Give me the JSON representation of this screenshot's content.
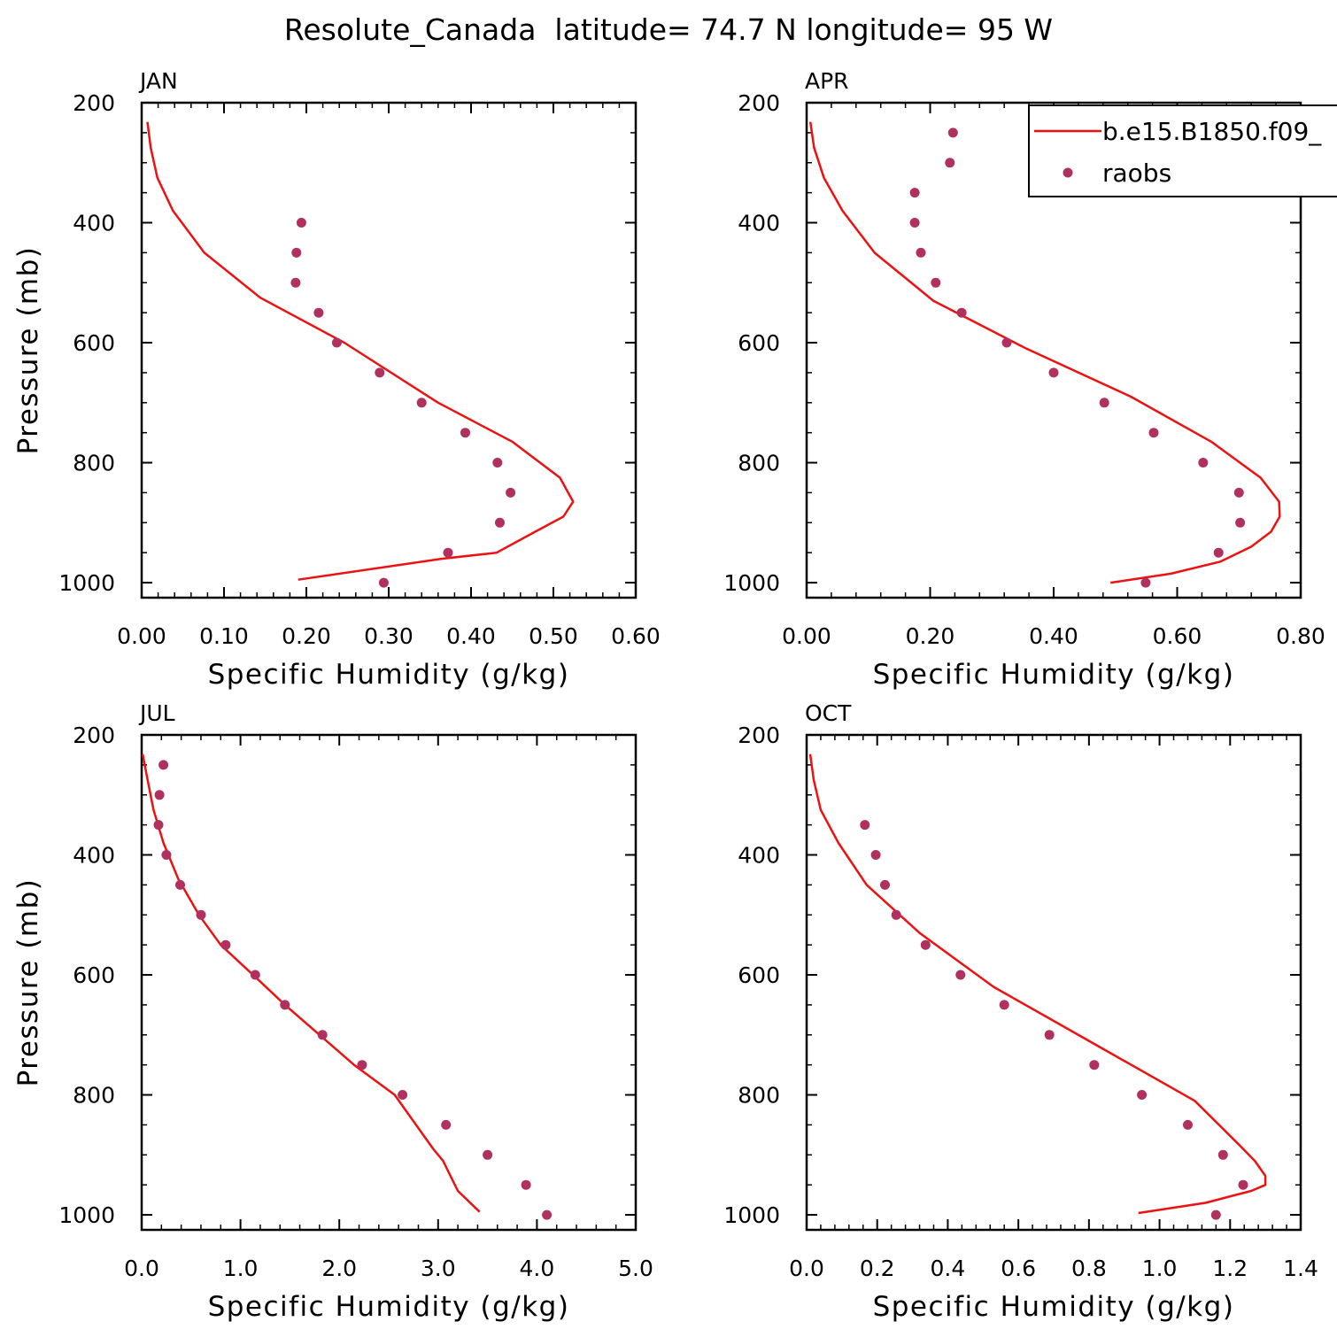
{
  "figure": {
    "title": "Resolute_Canada  latitude= 74.7 N longitude= 95 W"
  },
  "colors": {
    "model_line": "#ee1111",
    "obs_points": "#b03060",
    "axes": "#000000"
  },
  "legend": {
    "placement": "top-right of APR panel",
    "entries": [
      "b.e15.B1850.f09_",
      "raobs"
    ]
  },
  "chart_data": [
    {
      "type": "line",
      "panel_label": "JAN",
      "xlabel": "Specific Humidity (g/kg)",
      "ylabel": "Pressure (mb)",
      "xlim": [
        0,
        0.6
      ],
      "ylim": [
        200,
        1025
      ],
      "y_inverted": true,
      "xticks": [
        0,
        0.1,
        0.2,
        0.3,
        0.4,
        0.5,
        0.6
      ],
      "xtick_labels": [
        "0.00",
        "0.10",
        "0.20",
        "0.30",
        "0.40",
        "0.50",
        "0.60"
      ],
      "yticks": [
        200,
        400,
        600,
        800,
        1000
      ],
      "ytick_labels": [
        "200",
        "400",
        "600",
        "800",
        "1000"
      ],
      "series": [
        {
          "kind": "line",
          "x": [
            0.007,
            0.011,
            0.019,
            0.038,
            0.076,
            0.144,
            0.246,
            0.36,
            0.45,
            0.508,
            0.524,
            0.512,
            0.478,
            0.431,
            0.365,
            0.19
          ],
          "y": [
            232,
            275,
            325,
            380,
            450,
            525,
            600,
            700,
            765,
            825,
            865,
            890,
            915,
            950,
            960,
            995
          ]
        },
        {
          "kind": "scatter",
          "x": [
            0.194,
            0.188,
            0.187,
            0.215,
            0.237,
            0.289,
            0.34,
            0.393,
            0.432,
            0.448,
            0.435,
            0.372,
            0.294
          ],
          "y": [
            400,
            450,
            500,
            550,
            600,
            650,
            700,
            750,
            800,
            850,
            900,
            950,
            1000
          ]
        }
      ]
    },
    {
      "type": "line",
      "panel_label": "APR",
      "xlabel": "Specific Humidity (g/kg)",
      "ylabel": "",
      "xlim": [
        0,
        0.8
      ],
      "ylim": [
        200,
        1025
      ],
      "y_inverted": true,
      "xticks": [
        0,
        0.2,
        0.4,
        0.6,
        0.8
      ],
      "xtick_labels": [
        "0.00",
        "0.20",
        "0.40",
        "0.60",
        "0.80"
      ],
      "yticks": [
        200,
        400,
        600,
        800,
        1000
      ],
      "ytick_labels": [
        "200",
        "400",
        "600",
        "800",
        "1000"
      ],
      "series": [
        {
          "kind": "line",
          "x": [
            0.006,
            0.012,
            0.028,
            0.058,
            0.11,
            0.205,
            0.356,
            0.525,
            0.655,
            0.735,
            0.765,
            0.766,
            0.752,
            0.72,
            0.67,
            0.59,
            0.492
          ],
          "y": [
            232,
            275,
            325,
            380,
            450,
            530,
            610,
            690,
            765,
            825,
            865,
            890,
            915,
            940,
            965,
            985,
            1000
          ]
        },
        {
          "kind": "scatter",
          "x": [
            0.237,
            0.232,
            0.175,
            0.175,
            0.185,
            0.209,
            0.251,
            0.324,
            0.4,
            0.482,
            0.562,
            0.642,
            0.7,
            0.702,
            0.667,
            0.549
          ],
          "y": [
            250,
            300,
            350,
            400,
            450,
            500,
            550,
            600,
            650,
            700,
            750,
            800,
            850,
            900,
            950,
            1000
          ]
        }
      ]
    },
    {
      "type": "line",
      "panel_label": "JUL",
      "xlabel": "Specific Humidity (g/kg)",
      "ylabel": "Pressure (mb)",
      "xlim": [
        0,
        5.0
      ],
      "ylim": [
        200,
        1025
      ],
      "y_inverted": true,
      "xticks": [
        0,
        1,
        2,
        3,
        4,
        5
      ],
      "xtick_labels": [
        "0.0",
        "1.0",
        "2.0",
        "3.0",
        "4.0",
        "5.0"
      ],
      "yticks": [
        200,
        400,
        600,
        800,
        1000
      ],
      "ytick_labels": [
        "200",
        "400",
        "600",
        "800",
        "1000"
      ],
      "series": [
        {
          "kind": "line",
          "x": [
            0.01,
            0.06,
            0.12,
            0.22,
            0.37,
            0.58,
            0.8,
            1.16,
            1.45,
            1.8,
            2.15,
            2.56,
            2.95,
            3.05,
            3.2,
            3.42
          ],
          "y": [
            232,
            275,
            325,
            380,
            440,
            500,
            550,
            605,
            650,
            700,
            750,
            800,
            890,
            910,
            960,
            995
          ]
        },
        {
          "kind": "scatter",
          "x": [
            0.22,
            0.18,
            0.17,
            0.25,
            0.39,
            0.6,
            0.85,
            1.15,
            1.45,
            1.83,
            2.23,
            2.64,
            3.08,
            3.5,
            3.89,
            4.1
          ],
          "y": [
            250,
            300,
            350,
            400,
            450,
            500,
            550,
            600,
            650,
            700,
            750,
            800,
            850,
            900,
            950,
            1000
          ]
        }
      ]
    },
    {
      "type": "line",
      "panel_label": "OCT",
      "xlabel": "Specific Humidity (g/kg)",
      "ylabel": "",
      "xlim": [
        0,
        1.4
      ],
      "ylim": [
        200,
        1025
      ],
      "y_inverted": true,
      "xticks": [
        0,
        0.2,
        0.4,
        0.6,
        0.8,
        1.0,
        1.2,
        1.4
      ],
      "xtick_labels": [
        "0.0",
        "0.2",
        "0.4",
        "0.6",
        "0.8",
        "1.0",
        "1.2",
        "1.4"
      ],
      "yticks": [
        200,
        400,
        600,
        800,
        1000
      ],
      "ytick_labels": [
        "200",
        "400",
        "600",
        "800",
        "1000"
      ],
      "series": [
        {
          "kind": "line",
          "x": [
            0.01,
            0.02,
            0.04,
            0.09,
            0.17,
            0.32,
            0.53,
            0.8,
            1.1,
            1.22,
            1.27,
            1.3,
            1.3,
            1.26,
            1.13,
            0.94
          ],
          "y": [
            232,
            275,
            325,
            380,
            450,
            530,
            620,
            710,
            810,
            880,
            910,
            935,
            950,
            960,
            980,
            997
          ]
        },
        {
          "kind": "scatter",
          "x": [
            0.165,
            0.196,
            0.222,
            0.254,
            0.337,
            0.436,
            0.56,
            0.688,
            0.815,
            0.95,
            1.08,
            1.18,
            1.237,
            1.16
          ],
          "y": [
            350,
            400,
            450,
            500,
            550,
            600,
            650,
            700,
            750,
            800,
            850,
            900,
            950,
            1000
          ]
        }
      ]
    }
  ]
}
